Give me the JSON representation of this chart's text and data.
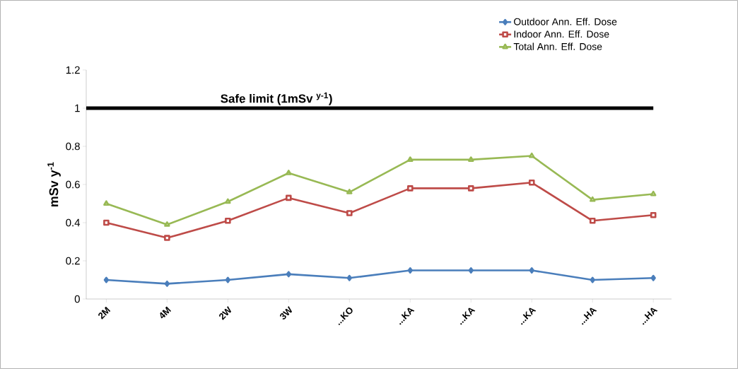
{
  "chart_data": {
    "type": "line",
    "ylabel": "mSv y$^{-1}$",
    "categories": [
      "2M",
      "4M",
      "2W",
      "3W",
      "...KO",
      "...KA",
      "...KA",
      "...KA",
      "...HA",
      "...HA"
    ],
    "series": [
      {
        "name": "Outdoor Ann. Eff. Dose",
        "color": "#4a7ebb",
        "marker": "diamond",
        "values": [
          0.1,
          0.08,
          0.1,
          0.13,
          0.11,
          0.15,
          0.15,
          0.15,
          0.1,
          0.11
        ]
      },
      {
        "name": "Indoor Ann. Eff. Dose",
        "color": "#be4b48",
        "marker": "square",
        "values": [
          0.4,
          0.32,
          0.41,
          0.53,
          0.45,
          0.58,
          0.58,
          0.61,
          0.41,
          0.44
        ]
      },
      {
        "name": "Total Ann. Eff. Dose",
        "color": "#98b954",
        "marker": "triangle",
        "values": [
          0.5,
          0.39,
          0.51,
          0.66,
          0.56,
          0.73,
          0.73,
          0.75,
          0.52,
          0.55
        ]
      }
    ],
    "ylim": [
      0,
      1.2
    ],
    "yticks": [
      0,
      0.2,
      0.4,
      0.6,
      0.8,
      1,
      1.2
    ],
    "ref_lines": [
      {
        "axis": "y",
        "value": 1,
        "label": "Safe limit (1mSv $^{y-1}$)",
        "color": "#000000",
        "line_style": "solid"
      }
    ],
    "grid": false,
    "legend": "top right",
    "line_style": "solid"
  }
}
